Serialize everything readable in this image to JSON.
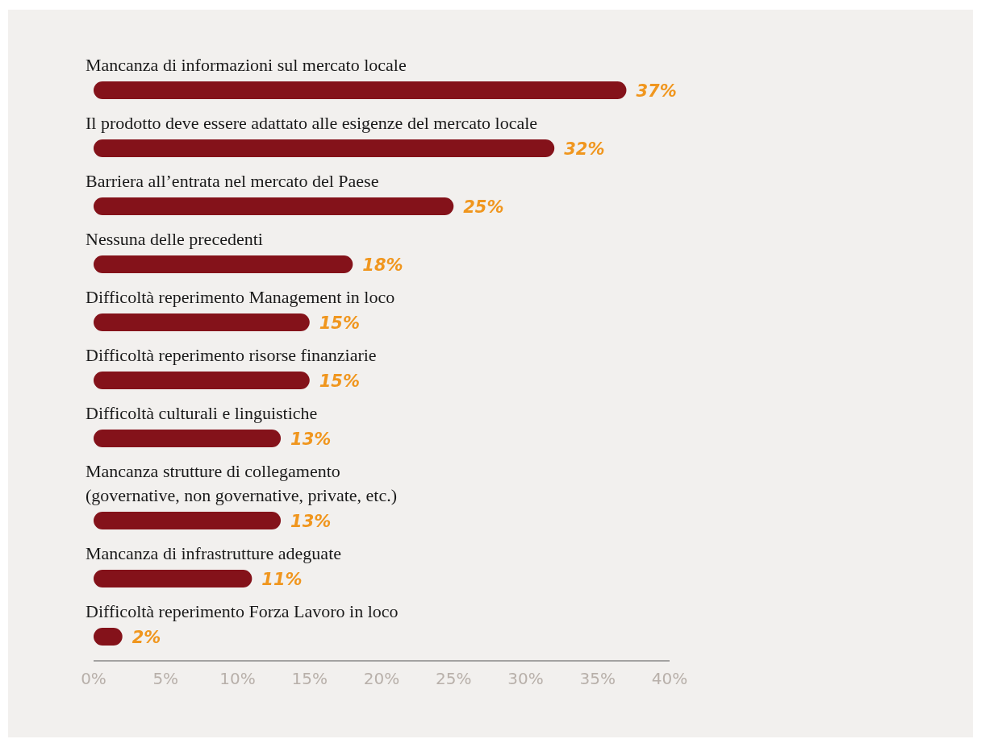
{
  "chart_data": {
    "type": "bar",
    "orientation": "horizontal",
    "categories": [
      "Mancanza di informazioni sul mercato locale",
      "Il prodotto deve essere adattato alle esigenze del mercato locale",
      "Barriera all’entrata nel mercato del Paese",
      "Nessuna delle precedenti",
      "Difficoltà reperimento Management in loco",
      "Difficoltà reperimento risorse finanziarie",
      "Difficoltà culturali e linguistiche",
      "Mancanza strutture di collegamento\n(governative, non governative, private, etc.)",
      "Mancanza di infrastrutture adeguate",
      "Difficoltà reperimento Forza Lavoro in loco"
    ],
    "values": [
      37,
      32,
      25,
      18,
      15,
      15,
      13,
      13,
      11,
      2
    ],
    "value_labels": [
      "37%",
      "32%",
      "25%",
      "18%",
      "15%",
      "15%",
      "13%",
      "13%",
      "11%",
      "2%"
    ],
    "color": "#84121a",
    "xlim": [
      0,
      40
    ],
    "xticks": [
      {
        "value": 0,
        "label": "0%"
      },
      {
        "value": 5,
        "label": "5%"
      },
      {
        "value": 10,
        "label": "10%"
      },
      {
        "value": 15,
        "label": "15%"
      },
      {
        "value": 20,
        "label": "20%"
      },
      {
        "value": 25,
        "label": "25%"
      },
      {
        "value": 30,
        "label": "30%"
      },
      {
        "value": 35,
        "label": "35%"
      },
      {
        "value": 40,
        "label": "40%"
      }
    ]
  }
}
